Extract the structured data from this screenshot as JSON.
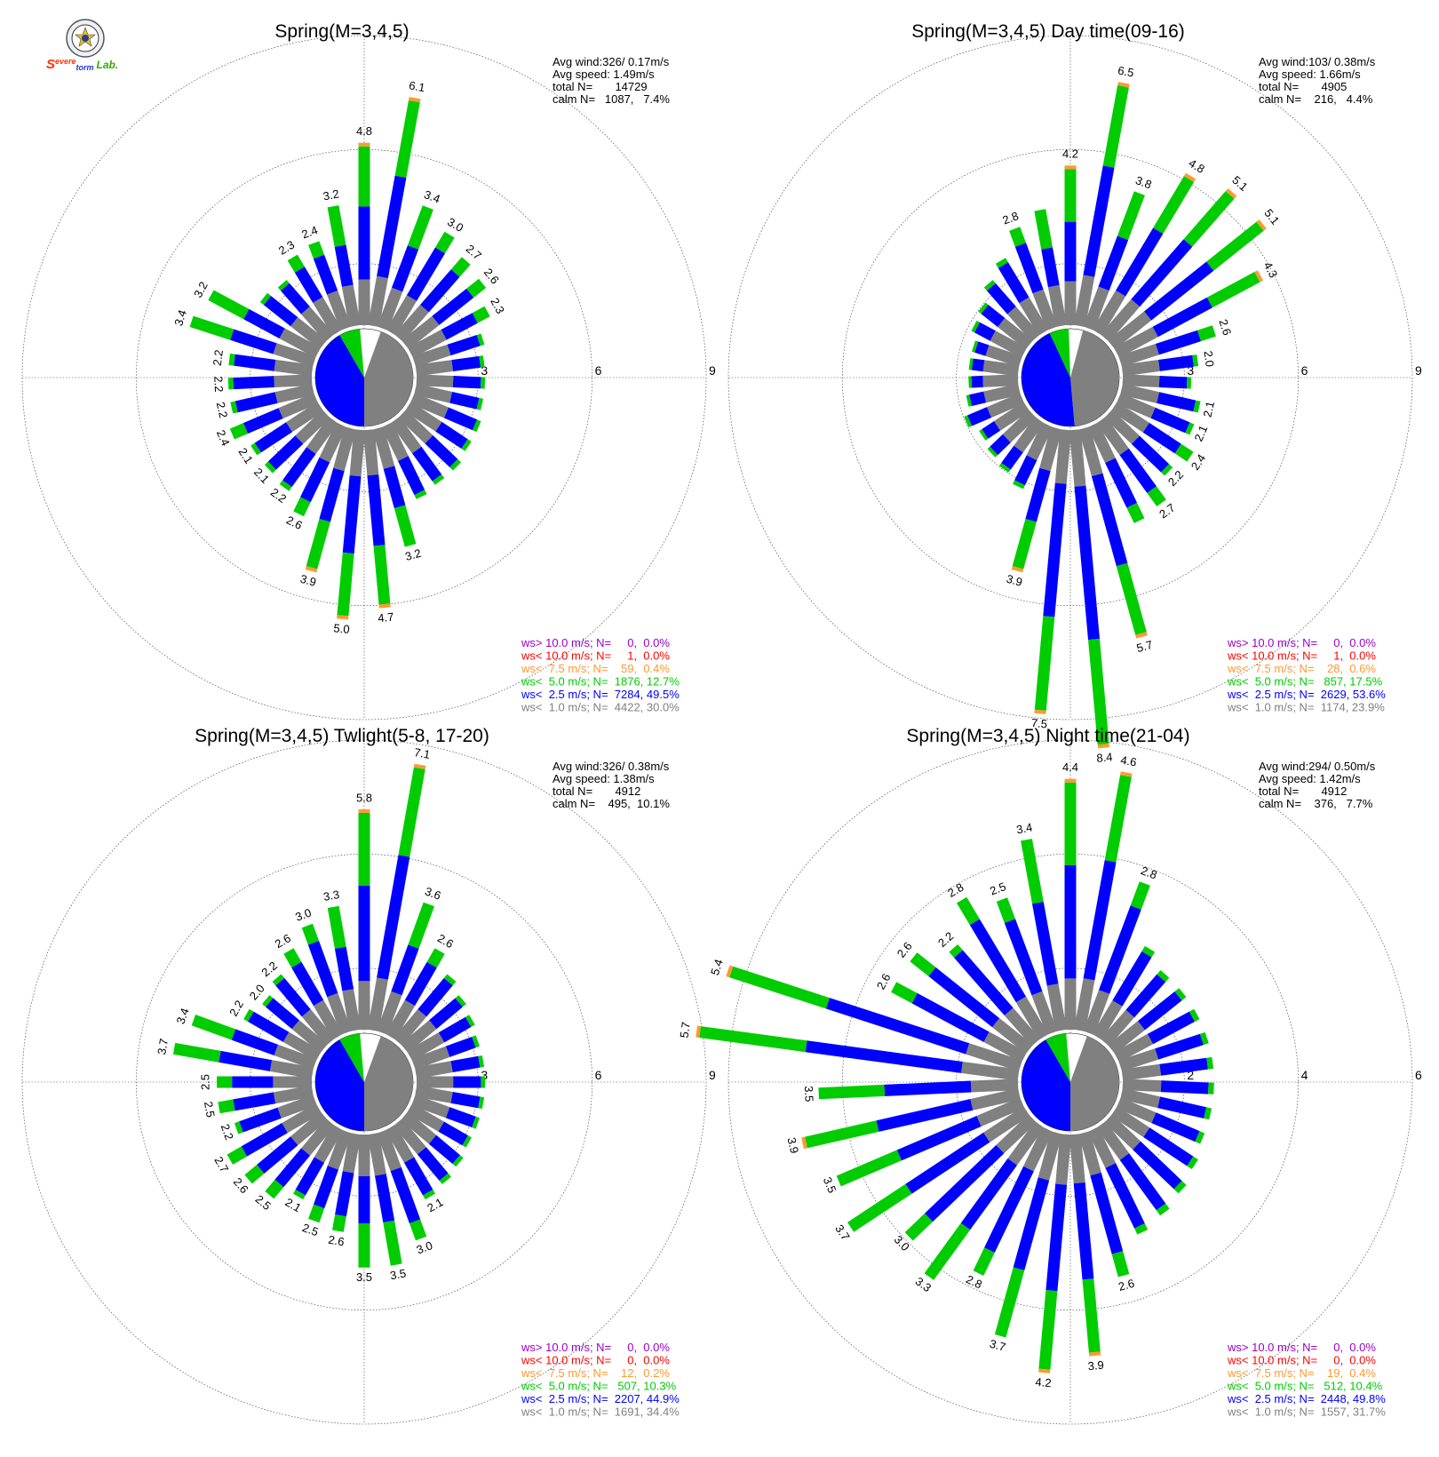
{
  "logo": {
    "text_s": "S",
    "text_evere": "evere",
    "text_torm": "torm",
    "text_lab": "Lab."
  },
  "colors": {
    "gt10": "#9900cc",
    "lt10": "#ff0000",
    "lt7_5": "#ff9933",
    "lt5": "#00cc00",
    "lt2_5": "#0000ff",
    "lt1": "#808080"
  },
  "chart_data": [
    {
      "type": "wind_rose",
      "title": "Spring(M=3,4,5)",
      "ring_labels": [
        "3",
        "6",
        "9"
      ],
      "rmax": 9,
      "stats": {
        "avg_wind": "Avg wind:326/ 0.17m/s",
        "avg_speed": "Avg speed: 1.49m/s",
        "total": "total N=       14729",
        "calm": "calm N=   1087,   7.4%"
      },
      "pie": [
        {
          "cls": "lt1",
          "start": 20,
          "end": 180
        },
        {
          "cls": "lt2_5",
          "start": 180,
          "end": 330
        },
        {
          "cls": "lt5",
          "start": 330,
          "end": 355
        }
      ],
      "bars": [
        4.8,
        6.1,
        3.4,
        3.0,
        2.7,
        2.6,
        2.3,
        1.9,
        1.8,
        1.8,
        1.8,
        1.9,
        1.9,
        2.0,
        2.0,
        2.1,
        3.2,
        4.7,
        5.0,
        3.9,
        2.6,
        2.2,
        2.1,
        2.1,
        2.4,
        2.2,
        2.2,
        2.2,
        3.4,
        3.2,
        2.0,
        1.9,
        2.3,
        2.4,
        3.2
      ],
      "labels": [
        "4.8",
        "6.1",
        "3.4",
        "3.0",
        "2.7",
        "2.6",
        "2.3",
        "",
        "",
        "",
        "",
        "",
        "",
        "",
        "",
        "",
        "3.2",
        "4.7",
        "5.0",
        "3.9",
        "2.6",
        "2.2",
        "2.1",
        "2.1",
        "2.4",
        "2.2",
        "2.2",
        "2.2",
        "3.4",
        "3.2",
        "",
        "",
        "2.3",
        "2.4",
        "3.2"
      ],
      "legend": [
        {
          "key": "gt10",
          "text": "ws> 10.0 m/s; N=     0,  0.0%"
        },
        {
          "key": "lt10",
          "text": "ws< 10.0 m/s; N=     1,  0.0%"
        },
        {
          "key": "lt7_5",
          "text": "ws<  7.5 m/s; N=    59,  0.4%"
        },
        {
          "key": "lt5",
          "text": "ws<  5.0 m/s; N=  1876, 12.7%"
        },
        {
          "key": "lt2_5",
          "text": "ws<  2.5 m/s; N=  7284, 49.5%"
        },
        {
          "key": "lt1",
          "text": "ws<  1.0 m/s; N=  4422, 30.0%"
        }
      ]
    },
    {
      "type": "wind_rose",
      "title": "Spring(M=3,4,5) Day time(09-16)",
      "ring_labels": [
        "3",
        "6",
        "9"
      ],
      "rmax": 9,
      "stats": {
        "avg_wind": "Avg wind:103/ 0.38m/s",
        "avg_speed": "Avg speed: 1.66m/s",
        "total": "total N=       4905",
        "calm": "calm N=    216,   4.4%"
      },
      "pie": [
        {
          "cls": "lt1",
          "start": 15,
          "end": 175
        },
        {
          "cls": "lt2_5",
          "start": 175,
          "end": 335
        },
        {
          "cls": "lt5",
          "start": 335,
          "end": 358
        }
      ],
      "bars": [
        4.2,
        6.5,
        3.8,
        4.8,
        5.1,
        5.1,
        4.3,
        2.6,
        2.0,
        1.8,
        2.1,
        2.1,
        2.4,
        2.2,
        2.7,
        2.8,
        5.7,
        8.4,
        7.5,
        3.9,
        1.8,
        1.6,
        1.5,
        1.4,
        1.6,
        1.4,
        1.3,
        1.3,
        1.3,
        1.5,
        1.6,
        1.9,
        2.2,
        2.8,
        3.1
      ],
      "labels": [
        "4.2",
        "6.5",
        "3.8",
        "4.8",
        "5.1",
        "5.1",
        "4.3",
        "2.6",
        "2.0",
        "",
        "2.1",
        "2.1",
        "2.4",
        "2.2",
        "2.7",
        "",
        "5.7",
        "8.4",
        "7.5",
        "3.9",
        "",
        "",
        "",
        "",
        "",
        "",
        "",
        "",
        "",
        "",
        "",
        "",
        "",
        "2.8",
        ""
      ],
      "legend": [
        {
          "key": "gt10",
          "text": "ws> 10.0 m/s; N=     0,  0.0%"
        },
        {
          "key": "lt10",
          "text": "ws< 10.0 m/s; N=     1,  0.0%"
        },
        {
          "key": "lt7_5",
          "text": "ws<  7.5 m/s; N=    28,  0.6%"
        },
        {
          "key": "lt5",
          "text": "ws<  5.0 m/s; N=   857, 17.5%"
        },
        {
          "key": "lt2_5",
          "text": "ws<  2.5 m/s; N=  2629, 53.6%"
        },
        {
          "key": "lt1",
          "text": "ws<  1.0 m/s; N=  1174, 23.9%"
        }
      ]
    },
    {
      "type": "wind_rose",
      "title": "Spring(M=3,4,5) Twlight(5-8, 17-20)",
      "ring_labels": [
        "3",
        "6",
        "9"
      ],
      "rmax": 9,
      "stats": {
        "avg_wind": "Avg wind:326/ 0.38m/s",
        "avg_speed": "Avg speed: 1.38m/s",
        "total": "total N=       4912",
        "calm": "calm N=    495,  10.1%"
      },
      "pie": [
        {
          "cls": "lt1",
          "start": 20,
          "end": 180
        },
        {
          "cls": "lt2_5",
          "start": 180,
          "end": 330
        },
        {
          "cls": "lt5",
          "start": 330,
          "end": 355
        }
      ],
      "bars": [
        5.8,
        7.1,
        3.6,
        2.6,
        2.2,
        2.0,
        1.9,
        1.8,
        1.8,
        1.8,
        1.8,
        1.8,
        1.8,
        1.9,
        2.0,
        2.1,
        3.0,
        3.5,
        3.5,
        2.6,
        2.5,
        2.1,
        2.5,
        2.6,
        2.7,
        2.2,
        2.5,
        2.5,
        3.7,
        3.4,
        2.2,
        2.0,
        2.2,
        2.6,
        3.0,
        3.3
      ],
      "labels": [
        "5.8",
        "7.1",
        "3.6",
        "2.6",
        "",
        "",
        "",
        "",
        "",
        "",
        "",
        "",
        "",
        "",
        "",
        "2.1",
        "3.0",
        "3.5",
        "3.5",
        "2.6",
        "2.5",
        "2.1",
        "2.5",
        "2.6",
        "2.7",
        "2.2",
        "2.5",
        "2.5",
        "3.7",
        "3.4",
        "2.2",
        "2.0",
        "2.2",
        "2.6",
        "3.0",
        "3.3"
      ],
      "legend": [
        {
          "key": "gt10",
          "text": "ws> 10.0 m/s; N=     0,  0.0%"
        },
        {
          "key": "lt10",
          "text": "ws< 10.0 m/s; N=     0,  0.0%"
        },
        {
          "key": "lt7_5",
          "text": "ws<  7.5 m/s; N=    12,  0.2%"
        },
        {
          "key": "lt5",
          "text": "ws<  5.0 m/s; N=   507, 10.3%"
        },
        {
          "key": "lt2_5",
          "text": "ws<  2.5 m/s; N=  2207, 44.9%"
        },
        {
          "key": "lt1",
          "text": "ws<  1.0 m/s; N=  1691, 34.4%"
        }
      ]
    },
    {
      "type": "wind_rose",
      "title": "Spring(M=3,4,5) Night time(21-04)",
      "ring_labels": [
        "2",
        "4",
        "6"
      ],
      "rmax": 6,
      "stats": {
        "avg_wind": "Avg wind:294/ 0.50m/s",
        "avg_speed": "Avg speed: 1.42m/s",
        "total": "total N=       4912",
        "calm": "calm N=    376,   7.7%"
      },
      "pie": [
        {
          "cls": "lt1",
          "start": 20,
          "end": 180
        },
        {
          "cls": "lt2_5",
          "start": 180,
          "end": 330
        },
        {
          "cls": "lt5",
          "start": 330,
          "end": 355
        }
      ],
      "bars": [
        4.4,
        4.6,
        2.8,
        1.8,
        1.6,
        1.6,
        1.6,
        1.6,
        1.6,
        1.6,
        1.6,
        1.6,
        1.7,
        1.8,
        1.9,
        2.0,
        2.6,
        3.9,
        4.2,
        3.7,
        2.8,
        3.3,
        3.0,
        3.7,
        3.5,
        3.9,
        3.5,
        5.7,
        5.4,
        2.6,
        2.6,
        2.2,
        2.8,
        2.5,
        3.4
      ],
      "labels": [
        "4.4",
        "4.6",
        "2.8",
        "",
        "",
        "",
        "",
        "",
        "",
        "",
        "",
        "",
        "",
        "",
        "",
        "",
        "2.6",
        "3.9",
        "4.2",
        "3.7",
        "2.8",
        "3.3",
        "3.0",
        "3.7",
        "3.5",
        "3.9",
        "3.5",
        "5.7",
        "5.4",
        "2.6",
        "2.6",
        "2.2",
        "2.8",
        "2.5",
        "3.4"
      ],
      "legend": [
        {
          "key": "gt10",
          "text": "ws> 10.0 m/s; N=     0,  0.0%"
        },
        {
          "key": "lt10",
          "text": "ws< 10.0 m/s; N=     0,  0.0%"
        },
        {
          "key": "lt7_5",
          "text": "ws<  7.5 m/s; N=    19,  0.4%"
        },
        {
          "key": "lt5",
          "text": "ws<  5.0 m/s; N=   512, 10.4%"
        },
        {
          "key": "lt2_5",
          "text": "ws<  2.5 m/s; N=  2448, 49.8%"
        },
        {
          "key": "lt1",
          "text": "ws<  1.0 m/s; N=  1557, 31.7%"
        }
      ]
    }
  ]
}
